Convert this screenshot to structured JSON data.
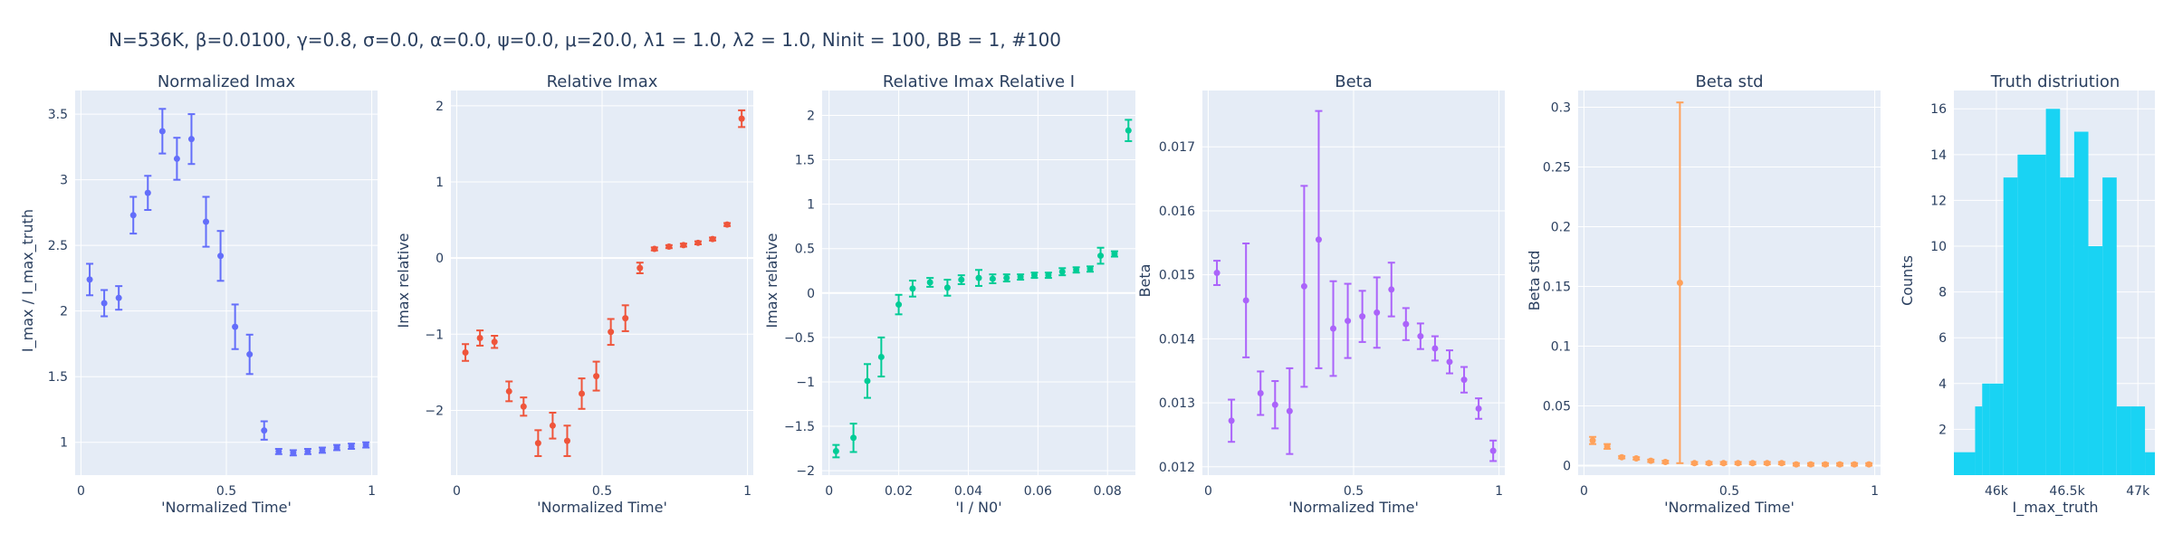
{
  "figure": {
    "title": "N=536K, β=0.0100, γ=0.8, σ=0.0,  α=0.0, ψ=0.0, μ=20.0, λ1 = 1.0, λ2 = 1.0, Ninit = 100, BB = 1, #100"
  },
  "chart_data": [
    {
      "type": "scatter",
      "title": "Normalized Imax",
      "xlabel": "'Normalized Time'",
      "ylabel": "I_max / I_max_truth",
      "color": "#636efa",
      "xlim": [
        -0.02,
        1.02
      ],
      "ylim": [
        0.75,
        3.68
      ],
      "xticks": [
        {
          "v": 0,
          "label": "0"
        },
        {
          "v": 0.5,
          "label": "0.5"
        },
        {
          "v": 1,
          "label": "1"
        }
      ],
      "yticks": [
        {
          "v": 1,
          "label": "1"
        },
        {
          "v": 1.5,
          "label": "1.5"
        },
        {
          "v": 2,
          "label": "2"
        },
        {
          "v": 2.5,
          "label": "2.5"
        },
        {
          "v": 3,
          "label": "3"
        },
        {
          "v": 3.5,
          "label": "3.5"
        }
      ],
      "x": [
        0.03,
        0.08,
        0.13,
        0.18,
        0.23,
        0.28,
        0.33,
        0.38,
        0.43,
        0.48,
        0.53,
        0.58,
        0.63,
        0.68,
        0.73,
        0.78,
        0.83,
        0.88,
        0.93,
        0.98
      ],
      "y": [
        2.24,
        2.06,
        2.1,
        2.73,
        2.9,
        3.37,
        3.16,
        3.31,
        2.68,
        2.42,
        1.88,
        1.67,
        1.09,
        0.93,
        0.92,
        0.93,
        0.94,
        0.96,
        0.97,
        0.98
      ],
      "err": [
        0.12,
        0.1,
        0.09,
        0.14,
        0.13,
        0.17,
        0.16,
        0.19,
        0.19,
        0.19,
        0.17,
        0.15,
        0.07,
        0.02,
        0.02,
        0.02,
        0.02,
        0.02,
        0.02,
        0.02
      ]
    },
    {
      "type": "scatter",
      "title": "Relative Imax",
      "xlabel": "'Normalized Time'",
      "ylabel": "Imax relative",
      "color": "#ef553b",
      "xlim": [
        -0.02,
        1.02
      ],
      "ylim": [
        -2.85,
        2.2
      ],
      "xticks": [
        {
          "v": 0,
          "label": "0"
        },
        {
          "v": 0.5,
          "label": "0.5"
        },
        {
          "v": 1,
          "label": "1"
        }
      ],
      "yticks": [
        {
          "v": -2,
          "label": "−2"
        },
        {
          "v": -1,
          "label": "−1"
        },
        {
          "v": 0,
          "label": "0"
        },
        {
          "v": 1,
          "label": "1"
        },
        {
          "v": 2,
          "label": "2"
        }
      ],
      "x": [
        0.03,
        0.08,
        0.13,
        0.18,
        0.23,
        0.28,
        0.33,
        0.38,
        0.43,
        0.48,
        0.53,
        0.58,
        0.63,
        0.68,
        0.73,
        0.78,
        0.83,
        0.88,
        0.93,
        0.98
      ],
      "y": [
        -1.24,
        -1.05,
        -1.1,
        -1.75,
        -1.95,
        -2.43,
        -2.2,
        -2.4,
        -1.78,
        -1.55,
        -0.97,
        -0.79,
        -0.13,
        0.12,
        0.15,
        0.17,
        0.2,
        0.25,
        0.44,
        1.83
      ],
      "err": [
        0.11,
        0.1,
        0.08,
        0.13,
        0.12,
        0.17,
        0.17,
        0.2,
        0.2,
        0.19,
        0.17,
        0.17,
        0.07,
        0.02,
        0.02,
        0.02,
        0.02,
        0.02,
        0.02,
        0.11
      ]
    },
    {
      "type": "scatter",
      "title": "Relative Imax Relative I",
      "xlabel": "'I / N0'",
      "ylabel": "Imax relative",
      "color": "#00cc96",
      "xlim": [
        -0.002,
        0.088
      ],
      "ylim": [
        -2.05,
        2.28
      ],
      "xticks": [
        {
          "v": 0,
          "label": "0"
        },
        {
          "v": 0.02,
          "label": "0.02"
        },
        {
          "v": 0.04,
          "label": "0.04"
        },
        {
          "v": 0.06,
          "label": "0.06"
        },
        {
          "v": 0.08,
          "label": "0.08"
        }
      ],
      "yticks": [
        {
          "v": -2,
          "label": "−2"
        },
        {
          "v": -1.5,
          "label": "−1.5"
        },
        {
          "v": -1,
          "label": "−1"
        },
        {
          "v": -0.5,
          "label": "−0.5"
        },
        {
          "v": 0,
          "label": "0"
        },
        {
          "v": 0.5,
          "label": "0.5"
        },
        {
          "v": 1,
          "label": "1"
        },
        {
          "v": 1.5,
          "label": "1.5"
        },
        {
          "v": 2,
          "label": "2"
        }
      ],
      "x": [
        0.002,
        0.007,
        0.011,
        0.015,
        0.02,
        0.024,
        0.029,
        0.034,
        0.038,
        0.043,
        0.047,
        0.051,
        0.055,
        0.059,
        0.063,
        0.067,
        0.071,
        0.075,
        0.078,
        0.082,
        0.086
      ],
      "y": [
        -1.78,
        -1.63,
        -0.99,
        -0.72,
        -0.13,
        0.05,
        0.12,
        0.06,
        0.15,
        0.17,
        0.16,
        0.17,
        0.18,
        0.2,
        0.2,
        0.24,
        0.26,
        0.27,
        0.42,
        0.44,
        1.83
      ],
      "err": [
        0.07,
        0.16,
        0.19,
        0.22,
        0.11,
        0.09,
        0.05,
        0.09,
        0.05,
        0.09,
        0.05,
        0.04,
        0.03,
        0.03,
        0.03,
        0.04,
        0.03,
        0.03,
        0.09,
        0.03,
        0.12
      ]
    },
    {
      "type": "scatter",
      "title": "Beta",
      "xlabel": "'Normalized Time'",
      "ylabel": "Beta",
      "color": "#ab63fa",
      "xlim": [
        -0.02,
        1.02
      ],
      "ylim": [
        0.01187,
        0.01788
      ],
      "xticks": [
        {
          "v": 0,
          "label": "0"
        },
        {
          "v": 0.5,
          "label": "0.5"
        },
        {
          "v": 1,
          "label": "1"
        }
      ],
      "yticks": [
        {
          "v": 0.012,
          "label": "0.012"
        },
        {
          "v": 0.013,
          "label": "0.013"
        },
        {
          "v": 0.014,
          "label": "0.014"
        },
        {
          "v": 0.015,
          "label": "0.015"
        },
        {
          "v": 0.016,
          "label": "0.016"
        },
        {
          "v": 0.017,
          "label": "0.017"
        }
      ],
      "x": [
        0.03,
        0.08,
        0.13,
        0.18,
        0.23,
        0.28,
        0.33,
        0.38,
        0.43,
        0.48,
        0.53,
        0.58,
        0.63,
        0.68,
        0.73,
        0.78,
        0.83,
        0.88,
        0.93,
        0.98
      ],
      "y": [
        0.01503,
        0.01272,
        0.0146,
        0.01315,
        0.01297,
        0.01287,
        0.01482,
        0.01555,
        0.01416,
        0.01428,
        0.01435,
        0.01441,
        0.01477,
        0.01423,
        0.01404,
        0.01385,
        0.01364,
        0.01336,
        0.01291,
        0.01225
      ],
      "err": [
        0.00019,
        0.00033,
        0.00089,
        0.00034,
        0.00037,
        0.00067,
        0.00157,
        0.00201,
        0.00074,
        0.00058,
        0.0004,
        0.00055,
        0.00042,
        0.00025,
        0.0002,
        0.00019,
        0.00018,
        0.0002,
        0.00016,
        0.00016
      ]
    },
    {
      "type": "scatter",
      "title": "Beta std",
      "xlabel": "'Normalized Time'",
      "ylabel": "Beta std",
      "color": "#ffa15a",
      "xlim": [
        -0.02,
        1.02
      ],
      "ylim": [
        -0.008,
        0.314
      ],
      "xticks": [
        {
          "v": 0,
          "label": "0"
        },
        {
          "v": 0.5,
          "label": "0.5"
        },
        {
          "v": 1,
          "label": "1"
        }
      ],
      "yticks": [
        {
          "v": 0,
          "label": "0"
        },
        {
          "v": 0.05,
          "label": "0.05"
        },
        {
          "v": 0.1,
          "label": "0.1"
        },
        {
          "v": 0.15,
          "label": "0.15"
        },
        {
          "v": 0.2,
          "label": "0.2"
        },
        {
          "v": 0.25,
          "label": "0.25"
        },
        {
          "v": 0.3,
          "label": "0.3"
        }
      ],
      "x": [
        0.03,
        0.08,
        0.13,
        0.18,
        0.23,
        0.28,
        0.33,
        0.38,
        0.43,
        0.48,
        0.53,
        0.58,
        0.63,
        0.68,
        0.73,
        0.78,
        0.83,
        0.88,
        0.93,
        0.98
      ],
      "y": [
        0.021,
        0.016,
        0.007,
        0.006,
        0.004,
        0.003,
        0.153,
        0.002,
        0.002,
        0.002,
        0.002,
        0.002,
        0.002,
        0.002,
        0.001,
        0.001,
        0.001,
        0.001,
        0.001,
        0.001
      ],
      "err": [
        0.003,
        0.002,
        0.001,
        0.001,
        0.001,
        0.001,
        0.151,
        0.001,
        0.001,
        0.001,
        0.001,
        0.001,
        0.001,
        0.001,
        0.001,
        0.001,
        0.001,
        0.001,
        0.001,
        0.001
      ]
    },
    {
      "type": "histogram",
      "title": "Truth distriution",
      "xlabel": "I_max_truth",
      "ylabel": "Counts",
      "color": "#19d3f3",
      "xlim": [
        45700,
        47120
      ],
      "ylim": [
        0,
        16.8
      ],
      "xticks": [
        {
          "v": 46000,
          "label": "46k"
        },
        {
          "v": 46500,
          "label": "46.5k"
        },
        {
          "v": 47000,
          "label": "47k"
        }
      ],
      "yticks": [
        {
          "v": 2,
          "label": "2"
        },
        {
          "v": 4,
          "label": "4"
        },
        {
          "v": 6,
          "label": "6"
        },
        {
          "v": 8,
          "label": "8"
        },
        {
          "v": 10,
          "label": "10"
        },
        {
          "v": 12,
          "label": "12"
        },
        {
          "v": 14,
          "label": "14"
        },
        {
          "v": 16,
          "label": "16"
        }
      ],
      "bins": [
        45700,
        45850,
        45900,
        45950,
        46050,
        46150,
        46350,
        46450,
        46550,
        46650,
        46750,
        46850,
        46950,
        47050,
        47120
      ],
      "counts": [
        1,
        3,
        4,
        4,
        13,
        14,
        16,
        13,
        15,
        10,
        13,
        3,
        3,
        1
      ]
    }
  ]
}
